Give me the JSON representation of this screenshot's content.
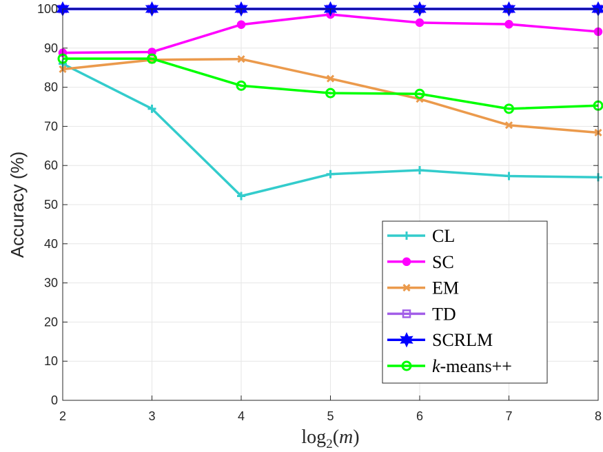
{
  "chart_data": {
    "type": "line",
    "x": [
      2,
      3,
      4,
      5,
      6,
      7,
      8
    ],
    "xlim": [
      2,
      8
    ],
    "ylim": [
      0,
      100
    ],
    "xticks": [
      "2",
      "3",
      "4",
      "5",
      "6",
      "7",
      "8"
    ],
    "yticks": [
      "0",
      "10",
      "20",
      "30",
      "40",
      "50",
      "60",
      "70",
      "80",
      "90",
      "100"
    ],
    "ylabel": "Accuracy (%)",
    "xlabel": {
      "prefix": "log",
      "subscript": "2",
      "argument": "(m)"
    },
    "grid": true,
    "legend_position": "bottom-right",
    "series": [
      {
        "name": "CL",
        "color": "#33cccc",
        "marker": "plus",
        "values": [
          86,
          74.5,
          52.2,
          57.8,
          58.8,
          57.3,
          57.0
        ]
      },
      {
        "name": "SC",
        "color": "#ff00ff",
        "marker": "circle-filled",
        "values": [
          88.8,
          89.0,
          96.0,
          98.6,
          96.5,
          96.1,
          94.2
        ]
      },
      {
        "name": "EM",
        "color": "#eb9a4c",
        "marker": "x",
        "values": [
          84.6,
          87.0,
          87.2,
          82.2,
          77.0,
          70.3,
          68.4
        ]
      },
      {
        "name": "TD",
        "color": "#a25ee8",
        "marker": "square",
        "values": [
          100,
          100,
          100,
          100,
          100,
          100,
          100
        ]
      },
      {
        "name": "SCRLM",
        "color": "#0000ff",
        "marker": "hexagram",
        "values": [
          100,
          100,
          100,
          100,
          100,
          100,
          100
        ]
      },
      {
        "name": "k-means++",
        "name_italic": "k",
        "name_rest": "-means++",
        "color": "#00ff00",
        "marker": "circle-open",
        "values": [
          87.3,
          87.3,
          80.4,
          78.5,
          78.3,
          74.5,
          75.3
        ]
      }
    ]
  }
}
